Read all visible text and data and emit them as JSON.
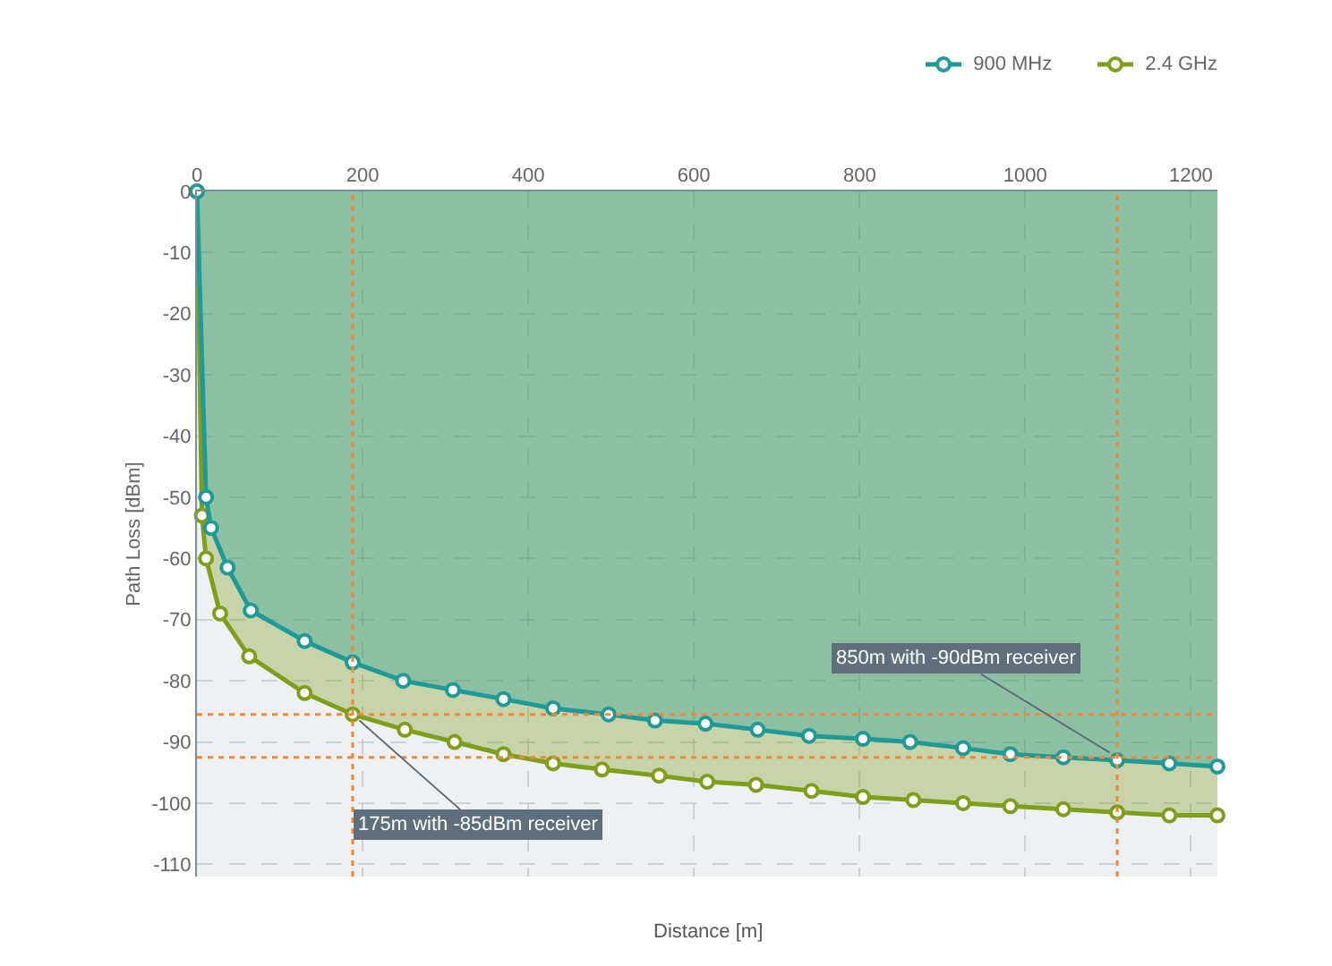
{
  "chart_data": {
    "type": "area",
    "xlabel": "Distance [m]",
    "ylabel": "Path Loss [dBm]",
    "xlim": [
      0,
      1232
    ],
    "xticks": [
      0,
      200,
      400,
      600,
      800,
      1000,
      1200
    ],
    "ylim": [
      -112,
      0
    ],
    "yticks": [
      0,
      -10,
      -20,
      -30,
      -40,
      -50,
      -60,
      -70,
      -80,
      -90,
      -100,
      -110
    ],
    "grid": true,
    "legend": "top right",
    "marker": "circle",
    "line_style": "solid",
    "series": [
      {
        "name": "2.4 GHz",
        "color": "#7f9f1c",
        "x": [
          0,
          6,
          11,
          28,
          63,
          130,
          188,
          251,
          311,
          370,
          430,
          489,
          558,
          616,
          675,
          742,
          804,
          865,
          925,
          982,
          1046,
          1111,
          1174,
          1232
        ],
        "values": [
          0,
          -53,
          -60,
          -69,
          -76,
          -82,
          -85.5,
          -88,
          -90,
          -92,
          -93.5,
          -94.5,
          -95.5,
          -96.5,
          -97,
          -98,
          -99,
          -99.5,
          -100,
          -100.5,
          -101,
          -101.5,
          -102,
          -102
        ]
      },
      {
        "name": "900 MHz",
        "color": "#1f9a97",
        "x": [
          0,
          11,
          17,
          37,
          65,
          130,
          188,
          249,
          309,
          370,
          430,
          497,
          553,
          614,
          677,
          739,
          804,
          861,
          925,
          982,
          1046,
          1111,
          1174,
          1232
        ],
        "values": [
          0,
          -50,
          -55,
          -61.5,
          -68.5,
          -73.5,
          -77,
          -80,
          -81.5,
          -83,
          -84.5,
          -85.5,
          -86.5,
          -87,
          -88,
          -89,
          -89.5,
          -90,
          -91,
          -92,
          -92.5,
          -93,
          -93.5,
          -94
        ]
      }
    ],
    "ref_lines": [
      {
        "axis": "x",
        "value": 188,
        "color": "#f0883a",
        "line_style": "dotted"
      },
      {
        "axis": "y",
        "value": -85.5,
        "color": "#f0883a",
        "line_style": "dotted"
      },
      {
        "axis": "x",
        "value": 1111,
        "color": "#f0883a",
        "line_style": "dotted"
      },
      {
        "axis": "y",
        "value": -92.5,
        "color": "#f0883a",
        "line_style": "dotted"
      }
    ],
    "annotations": [
      {
        "text": "175m with -85dBm receiver",
        "x": 188,
        "y": -85.5
      },
      {
        "text": "850m with -90dBm receiver",
        "x": 1111,
        "y": -92.5
      }
    ]
  }
}
